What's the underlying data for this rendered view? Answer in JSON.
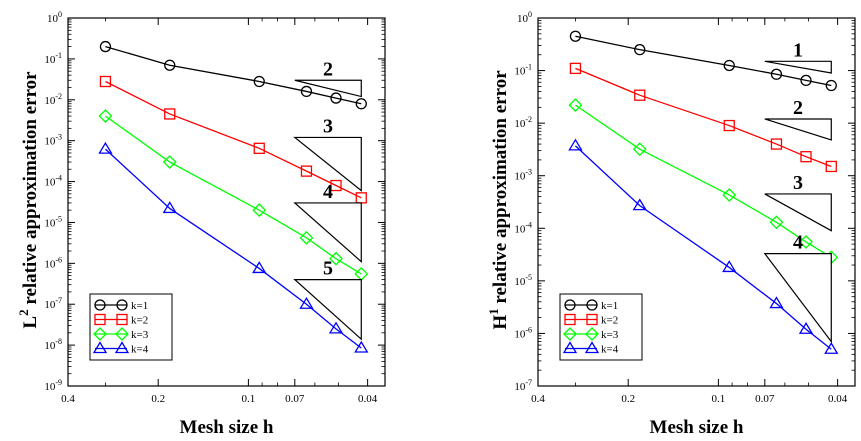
{
  "chart_data": [
    {
      "type": "line",
      "xlabel": "Mesh size h",
      "ylabel_main": "L",
      "ylabel_sup": "2",
      "ylabel_rest": " relative approximation error",
      "x_scale": "log-reversed",
      "y_scale": "log",
      "xlim": [
        0.4,
        0.035
      ],
      "ylim": [
        1e-09,
        1
      ],
      "x_ticks": [
        0.4,
        0.2,
        0.1,
        0.07,
        0.04
      ],
      "x_tick_labels": [
        "0.4",
        "0.2",
        "0.1",
        "0.07",
        "0.04"
      ],
      "y_ticks_exp": [
        -9,
        -8,
        -7,
        -6,
        -5,
        -4,
        -3,
        -2,
        -1,
        0
      ],
      "legend_position": "bottom-left",
      "series": [
        {
          "name": "k=1",
          "color": "#000000",
          "marker": "circle",
          "x": [
            0.3,
            0.183,
            0.092,
            0.064,
            0.051,
            0.042
          ],
          "y": [
            0.2,
            0.07,
            0.028,
            0.016,
            0.011,
            0.008
          ]
        },
        {
          "name": "k=2",
          "color": "#ff0000",
          "marker": "square",
          "x": [
            0.3,
            0.183,
            0.092,
            0.064,
            0.051,
            0.042
          ],
          "y": [
            0.028,
            0.0045,
            0.00065,
            0.00018,
            8e-05,
            4e-05
          ]
        },
        {
          "name": "k=3",
          "color": "#00ff00",
          "marker": "diamond",
          "x": [
            0.3,
            0.183,
            0.092,
            0.064,
            0.051,
            0.042
          ],
          "y": [
            0.004,
            0.0003,
            2e-05,
            4.2e-06,
            1.3e-06,
            5.5e-07
          ]
        },
        {
          "name": "k=4",
          "color": "#0000ff",
          "marker": "triangle",
          "x": [
            0.3,
            0.183,
            0.092,
            0.064,
            0.051,
            0.042
          ],
          "y": [
            0.00062,
            2.2e-05,
            7.5e-07,
            1e-07,
            2.5e-08,
            8.5e-09
          ]
        }
      ],
      "rate_labels": [
        {
          "label": "2",
          "x1": 0.07,
          "x2": 0.042,
          "y_top": 0.03,
          "y_bottom": 0.012
        },
        {
          "label": "3",
          "x1": 0.07,
          "x2": 0.042,
          "y_top": 0.0012,
          "y_bottom": 6e-05
        },
        {
          "label": "4",
          "x1": 0.07,
          "x2": 0.042,
          "y_top": 3e-05,
          "y_bottom": 1.1e-06
        },
        {
          "label": "5",
          "x1": 0.07,
          "x2": 0.042,
          "y_top": 4e-07,
          "y_bottom": 1.4e-08
        }
      ]
    },
    {
      "type": "line",
      "xlabel": "Mesh size h",
      "ylabel_main": "H",
      "ylabel_sup": "1",
      "ylabel_rest": " relative approximation error",
      "x_scale": "log-reversed",
      "y_scale": "log",
      "xlim": [
        0.4,
        0.035
      ],
      "ylim": [
        1e-07,
        1
      ],
      "x_ticks": [
        0.4,
        0.2,
        0.1,
        0.07,
        0.04
      ],
      "x_tick_labels": [
        "0.4",
        "0.2",
        "0.1",
        "0.07",
        "0.04"
      ],
      "y_ticks_exp": [
        -7,
        -6,
        -5,
        -4,
        -3,
        -2,
        -1,
        0
      ],
      "legend_position": "bottom-left",
      "series": [
        {
          "name": "k=1",
          "color": "#000000",
          "marker": "circle",
          "x": [
            0.3,
            0.183,
            0.092,
            0.064,
            0.051,
            0.042
          ],
          "y": [
            0.45,
            0.25,
            0.125,
            0.085,
            0.065,
            0.052
          ]
        },
        {
          "name": "k=2",
          "color": "#ff0000",
          "marker": "square",
          "x": [
            0.3,
            0.183,
            0.092,
            0.064,
            0.051,
            0.042
          ],
          "y": [
            0.11,
            0.034,
            0.009,
            0.004,
            0.0023,
            0.0015
          ]
        },
        {
          "name": "k=3",
          "color": "#00ff00",
          "marker": "diamond",
          "x": [
            0.3,
            0.183,
            0.092,
            0.064,
            0.051,
            0.042
          ],
          "y": [
            0.022,
            0.0032,
            0.00043,
            0.00013,
            5.5e-05,
            2.8e-05
          ]
        },
        {
          "name": "k=4",
          "color": "#0000ff",
          "marker": "triangle",
          "x": [
            0.3,
            0.183,
            0.092,
            0.064,
            0.051,
            0.042
          ],
          "y": [
            0.0037,
            0.00027,
            1.8e-05,
            3.7e-06,
            1.2e-06,
            5e-07
          ]
        }
      ],
      "rate_labels": [
        {
          "label": "1",
          "x1": 0.07,
          "x2": 0.042,
          "y_top": 0.15,
          "y_bottom": 0.09
        },
        {
          "label": "2",
          "x1": 0.07,
          "x2": 0.042,
          "y_top": 0.012,
          "y_bottom": 0.0048
        },
        {
          "label": "3",
          "x1": 0.07,
          "x2": 0.042,
          "y_top": 0.00045,
          "y_bottom": 9e-05
        },
        {
          "label": "4",
          "x1": 0.07,
          "x2": 0.042,
          "y_top": 3.3e-05,
          "y_bottom": 7e-07
        }
      ]
    }
  ]
}
